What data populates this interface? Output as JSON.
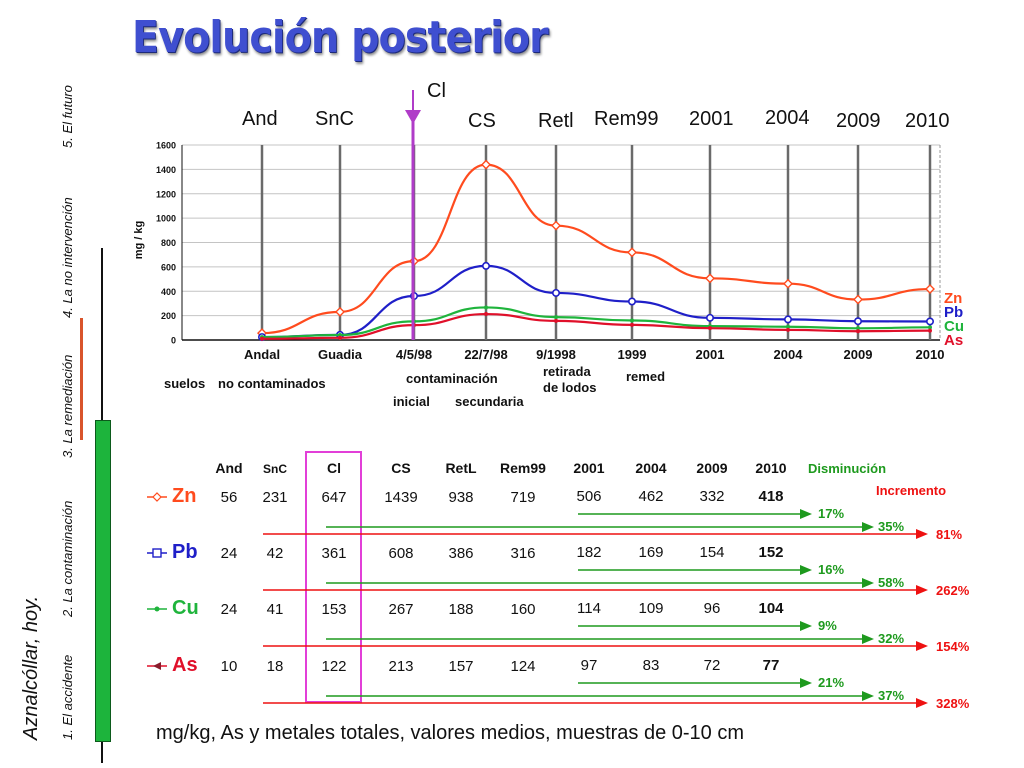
{
  "title": "Evolución posterior",
  "cl_marker_label": "Cl",
  "top_labels": [
    "And",
    "SnC",
    "CS",
    "Retl",
    "Rem99",
    "2001",
    "2004",
    "2009",
    "2010"
  ],
  "side_nav": {
    "place": "Aznalcóllar, hoy.",
    "items": [
      "1. El accidente",
      "2. La contaminación",
      "3. La remediación",
      "4. La no intervención",
      "5. El futuro"
    ]
  },
  "colors": {
    "Zn": "#ff4b1e",
    "Pb": "#1f1fc8",
    "Cu": "#1fb43c",
    "As": "#e0102a",
    "cl_line": "#b03cc8",
    "disminucion": "#1e9a1e",
    "incremento": "#ee1111",
    "nav_red": "#d9542b",
    "nav_green": "#1db43c",
    "title": "#3f4fd0"
  },
  "chart_data": {
    "type": "line",
    "ylabel": "mg / kg",
    "ylim": [
      0,
      1600
    ],
    "yticks": [
      0,
      200,
      400,
      600,
      800,
      1000,
      1200,
      1400,
      1600
    ],
    "grid": true,
    "categories": [
      "Andal",
      "Guadia",
      "4/5/98",
      "22/7/98",
      "9/1998",
      "1999",
      "2001",
      "2004",
      "2009",
      "2010"
    ],
    "category_sublabels": [
      "",
      "",
      "",
      "",
      "retirada de lodos",
      "remed",
      "",
      "",
      "",
      ""
    ],
    "group_labels": [
      "suelos",
      "no contaminados",
      "contaminación",
      "inicial",
      "secundaria"
    ],
    "series": [
      {
        "name": "Zn",
        "values": [
          56,
          231,
          647,
          1439,
          938,
          719,
          506,
          462,
          332,
          418
        ]
      },
      {
        "name": "Pb",
        "values": [
          24,
          42,
          361,
          608,
          386,
          316,
          182,
          169,
          154,
          152
        ]
      },
      {
        "name": "Cu",
        "values": [
          24,
          41,
          153,
          267,
          188,
          160,
          114,
          109,
          96,
          104
        ]
      },
      {
        "name": "As",
        "values": [
          10,
          18,
          122,
          213,
          157,
          124,
          97,
          83,
          72,
          77
        ]
      }
    ],
    "legend": [
      "Zn",
      "Pb",
      "Cu",
      "As"
    ],
    "legend_position": "right"
  },
  "table": {
    "headers": [
      "And",
      "SnC",
      "Cl",
      "CS",
      "RetL",
      "Rem99",
      "2001",
      "2004",
      "2009",
      "2010"
    ],
    "disminucion_label": "Disminución",
    "incremento_label": "Incremento",
    "rows": [
      {
        "element": "Zn",
        "values": [
          "56",
          "231",
          "647",
          "1439",
          "938",
          "719",
          "506",
          "462",
          "332",
          "418"
        ],
        "pcts": [
          "17%",
          "35%",
          "81%"
        ]
      },
      {
        "element": "Pb",
        "values": [
          "24",
          "42",
          "361",
          "608",
          "386",
          "316",
          "182",
          "169",
          "154",
          "152"
        ],
        "pcts": [
          "16%",
          "58%",
          "262%"
        ]
      },
      {
        "element": "Cu",
        "values": [
          "24",
          "41",
          "153",
          "267",
          "188",
          "160",
          "114",
          "109",
          "96",
          "104"
        ],
        "pcts": [
          "9%",
          "32%",
          "154%"
        ]
      },
      {
        "element": "As",
        "values": [
          "10",
          "18",
          "122",
          "213",
          "157",
          "124",
          "97",
          "83",
          "72",
          "77"
        ],
        "pcts": [
          "21%",
          "37%",
          "328%"
        ]
      }
    ]
  },
  "caption": "mg/kg,  As y metales totales, valores medios, muestras de 0-10 cm"
}
